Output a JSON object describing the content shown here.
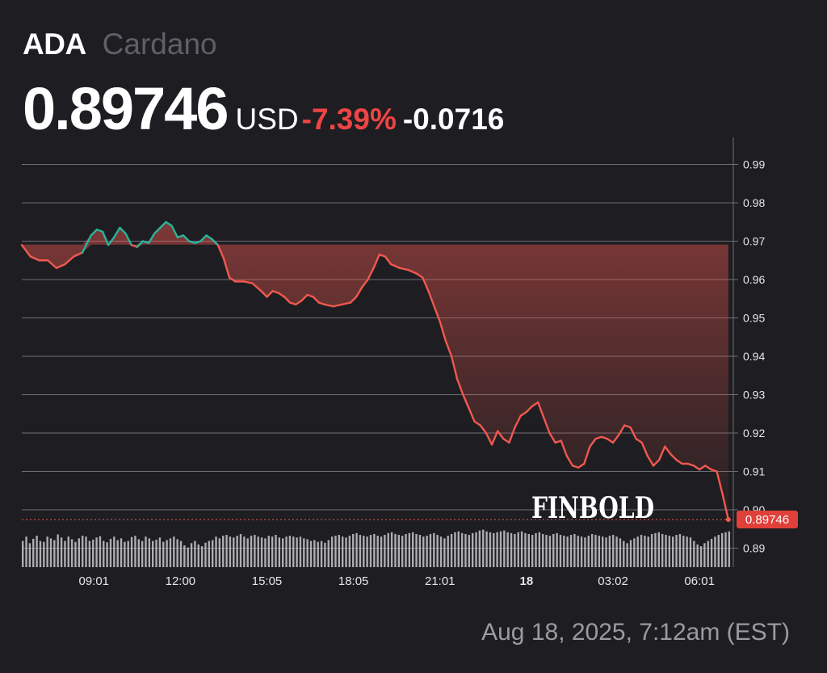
{
  "header": {
    "ticker": "ADA",
    "name": "Cardano",
    "price": "0.89746",
    "currency": "USD",
    "change_pct": "-7.39%",
    "change_abs": "-0.0716"
  },
  "watermark": "FINBOLD",
  "timestamp": "Aug 18, 2025, 7:12am (EST)",
  "colors": {
    "background": "#1e1e22",
    "up": "#2bb39a",
    "down": "#f0584f",
    "negative_text": "#ef4444",
    "grid": "#6e6e75",
    "volume": "#c8c8cc"
  },
  "chart_data": {
    "type": "line",
    "x_ticks": [
      "09:01",
      "12:00",
      "15:05",
      "18:05",
      "21:01",
      "18",
      "03:02",
      "06:01"
    ],
    "x_tick_positions_h": [
      1,
      4,
      7,
      10,
      13,
      16,
      19,
      22
    ],
    "y_ticks": [
      "0.99",
      "0.98",
      "0.97",
      "0.96",
      "0.95",
      "0.94",
      "0.93",
      "0.92",
      "0.91",
      "0.90",
      "0.89"
    ],
    "ylim": [
      0.885,
      0.995
    ],
    "xlim_h": [
      -1.5,
      23.2
    ],
    "current_price_label": "0.89746",
    "reference_price": 0.9691,
    "series": [
      {
        "values": [
          [
            -1.5,
            0.969
          ],
          [
            -1.2,
            0.966
          ],
          [
            -0.9,
            0.965
          ],
          [
            -0.6,
            0.965
          ],
          [
            -0.3,
            0.963
          ],
          [
            0.0,
            0.964
          ],
          [
            0.3,
            0.966
          ],
          [
            0.6,
            0.967
          ],
          [
            0.9,
            0.9715
          ],
          [
            1.1,
            0.973
          ],
          [
            1.3,
            0.9725
          ],
          [
            1.5,
            0.969
          ],
          [
            1.7,
            0.971
          ],
          [
            1.9,
            0.9735
          ],
          [
            2.1,
            0.972
          ],
          [
            2.3,
            0.969
          ],
          [
            2.5,
            0.9685
          ],
          [
            2.7,
            0.97
          ],
          [
            2.9,
            0.9695
          ],
          [
            3.1,
            0.972
          ],
          [
            3.3,
            0.9735
          ],
          [
            3.5,
            0.975
          ],
          [
            3.7,
            0.974
          ],
          [
            3.9,
            0.971
          ],
          [
            4.1,
            0.9715
          ],
          [
            4.3,
            0.97
          ],
          [
            4.5,
            0.9695
          ],
          [
            4.7,
            0.97
          ],
          [
            4.9,
            0.9715
          ],
          [
            5.1,
            0.9705
          ],
          [
            5.3,
            0.969
          ],
          [
            5.5,
            0.9655
          ],
          [
            5.7,
            0.9605
          ],
          [
            5.9,
            0.9595
          ],
          [
            6.2,
            0.9595
          ],
          [
            6.5,
            0.959
          ],
          [
            6.8,
            0.957
          ],
          [
            7.0,
            0.9555
          ],
          [
            7.2,
            0.957
          ],
          [
            7.4,
            0.9565
          ],
          [
            7.6,
            0.9555
          ],
          [
            7.8,
            0.954
          ],
          [
            8.0,
            0.9535
          ],
          [
            8.2,
            0.9545
          ],
          [
            8.4,
            0.956
          ],
          [
            8.6,
            0.9555
          ],
          [
            8.8,
            0.954
          ],
          [
            9.0,
            0.9535
          ],
          [
            9.3,
            0.953
          ],
          [
            9.6,
            0.9535
          ],
          [
            9.9,
            0.954
          ],
          [
            10.1,
            0.9555
          ],
          [
            10.3,
            0.958
          ],
          [
            10.5,
            0.96
          ],
          [
            10.7,
            0.963
          ],
          [
            10.9,
            0.9665
          ],
          [
            11.1,
            0.966
          ],
          [
            11.3,
            0.964
          ],
          [
            11.6,
            0.963
          ],
          [
            11.9,
            0.9625
          ],
          [
            12.2,
            0.9615
          ],
          [
            12.4,
            0.9605
          ],
          [
            12.6,
            0.957
          ],
          [
            12.8,
            0.953
          ],
          [
            13.0,
            0.949
          ],
          [
            13.2,
            0.944
          ],
          [
            13.4,
            0.94
          ],
          [
            13.6,
            0.934
          ],
          [
            13.8,
            0.93
          ],
          [
            14.0,
            0.9265
          ],
          [
            14.2,
            0.923
          ],
          [
            14.4,
            0.922
          ],
          [
            14.6,
            0.92
          ],
          [
            14.8,
            0.917
          ],
          [
            15.0,
            0.9205
          ],
          [
            15.2,
            0.9185
          ],
          [
            15.4,
            0.9175
          ],
          [
            15.6,
            0.9215
          ],
          [
            15.8,
            0.9245
          ],
          [
            16.0,
            0.9255
          ],
          [
            16.2,
            0.927
          ],
          [
            16.4,
            0.928
          ],
          [
            16.6,
            0.924
          ],
          [
            16.8,
            0.92
          ],
          [
            17.0,
            0.9175
          ],
          [
            17.2,
            0.918
          ],
          [
            17.4,
            0.914
          ],
          [
            17.6,
            0.9115
          ],
          [
            17.8,
            0.911
          ],
          [
            18.0,
            0.912
          ],
          [
            18.2,
            0.9165
          ],
          [
            18.4,
            0.9185
          ],
          [
            18.6,
            0.919
          ],
          [
            18.8,
            0.9185
          ],
          [
            19.0,
            0.9175
          ],
          [
            19.2,
            0.9195
          ],
          [
            19.4,
            0.922
          ],
          [
            19.6,
            0.9215
          ],
          [
            19.8,
            0.9185
          ],
          [
            20.0,
            0.9175
          ],
          [
            20.2,
            0.914
          ],
          [
            20.4,
            0.9115
          ],
          [
            20.6,
            0.913
          ],
          [
            20.8,
            0.9165
          ],
          [
            21.0,
            0.9145
          ],
          [
            21.2,
            0.913
          ],
          [
            21.4,
            0.912
          ],
          [
            21.6,
            0.912
          ],
          [
            21.8,
            0.9115
          ],
          [
            22.0,
            0.9105
          ],
          [
            22.2,
            0.9115
          ],
          [
            22.4,
            0.9105
          ],
          [
            22.6,
            0.91
          ],
          [
            22.8,
            0.904
          ],
          [
            23.0,
            0.89746
          ]
        ]
      }
    ],
    "volume": [
      0.6,
      0.7,
      0.55,
      0.65,
      0.72,
      0.6,
      0.58,
      0.7,
      0.66,
      0.62,
      0.75,
      0.68,
      0.6,
      0.7,
      0.64,
      0.58,
      0.66,
      0.72,
      0.7,
      0.6,
      0.63,
      0.68,
      0.71,
      0.6,
      0.57,
      0.65,
      0.7,
      0.62,
      0.66,
      0.58,
      0.6,
      0.69,
      0.72,
      0.64,
      0.6,
      0.7,
      0.66,
      0.6,
      0.63,
      0.68,
      0.58,
      0.62,
      0.66,
      0.7,
      0.64,
      0.6,
      0.5,
      0.45,
      0.55,
      0.6,
      0.52,
      0.48,
      0.56,
      0.6,
      0.62,
      0.7,
      0.66,
      0.72,
      0.74,
      0.7,
      0.68,
      0.72,
      0.76,
      0.7,
      0.66,
      0.72,
      0.74,
      0.7,
      0.68,
      0.66,
      0.72,
      0.7,
      0.74,
      0.68,
      0.66,
      0.7,
      0.72,
      0.7,
      0.68,
      0.7,
      0.66,
      0.64,
      0.6,
      0.62,
      0.58,
      0.6,
      0.56,
      0.62,
      0.7,
      0.72,
      0.74,
      0.7,
      0.68,
      0.72,
      0.76,
      0.78,
      0.74,
      0.72,
      0.7,
      0.74,
      0.76,
      0.72,
      0.7,
      0.74,
      0.78,
      0.8,
      0.76,
      0.74,
      0.72,
      0.76,
      0.78,
      0.8,
      0.76,
      0.74,
      0.7,
      0.72,
      0.76,
      0.78,
      0.74,
      0.7,
      0.66,
      0.72,
      0.76,
      0.8,
      0.82,
      0.78,
      0.76,
      0.74,
      0.78,
      0.8,
      0.84,
      0.86,
      0.82,
      0.8,
      0.78,
      0.8,
      0.82,
      0.84,
      0.8,
      0.78,
      0.76,
      0.8,
      0.82,
      0.78,
      0.76,
      0.74,
      0.78,
      0.8,
      0.76,
      0.74,
      0.72,
      0.76,
      0.78,
      0.74,
      0.72,
      0.7,
      0.74,
      0.76,
      0.72,
      0.7,
      0.68,
      0.72,
      0.76,
      0.74,
      0.72,
      0.7,
      0.68,
      0.72,
      0.74,
      0.7,
      0.66,
      0.6,
      0.55,
      0.62,
      0.66,
      0.7,
      0.74,
      0.72,
      0.7,
      0.76,
      0.78,
      0.8,
      0.76,
      0.74,
      0.72,
      0.7,
      0.74,
      0.76,
      0.72,
      0.7,
      0.68,
      0.6,
      0.52,
      0.48,
      0.55,
      0.6,
      0.65,
      0.7,
      0.74,
      0.78,
      0.8,
      0.82
    ]
  }
}
